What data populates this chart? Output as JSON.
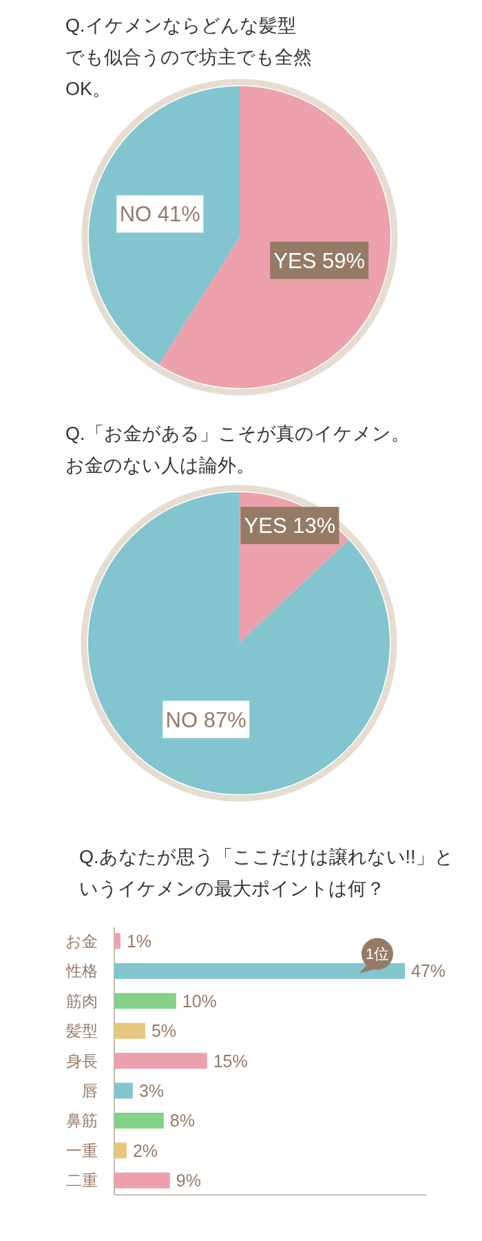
{
  "chart_data": [
    {
      "type": "pie",
      "title": "Q.イケメンならどんな髪型でも似合うので坊主でも全然OK。",
      "categories": [
        "YES",
        "NO"
      ],
      "values": [
        59,
        41
      ],
      "colors": [
        "#eca1ad",
        "#82c5cf"
      ],
      "value_labels": [
        "59%",
        "41%"
      ]
    },
    {
      "type": "pie",
      "title": "Q.「お金がある」こそが真のイケメン。お金のない人は論外。",
      "categories": [
        "YES",
        "NO"
      ],
      "values": [
        13,
        87
      ],
      "colors": [
        "#eca1ad",
        "#82c5cf"
      ],
      "value_labels": [
        "13%",
        "87%"
      ]
    },
    {
      "type": "bar",
      "orientation": "horizontal",
      "title": "Q.あなたが思う「ここだけは譲れない!!」というイケメンの最大ポイントは何？",
      "categories": [
        "お金",
        "性格",
        "筋肉",
        "髪型",
        "身長",
        "唇",
        "鼻筋",
        "一重",
        "二重"
      ],
      "values": [
        1,
        47,
        10,
        5,
        15,
        3,
        8,
        2,
        9
      ],
      "colors": [
        "#eca1ad",
        "#82c5cf",
        "#84d18a",
        "#e6c77e",
        "#eca1ad",
        "#82c5cf",
        "#84d18a",
        "#e6c77e",
        "#eca1ad"
      ],
      "value_labels": [
        "1%",
        "47%",
        "10%",
        "5%",
        "15%",
        "3%",
        "8%",
        "2%",
        "9%"
      ],
      "annotations": [
        {
          "text": "1位",
          "x": 47,
          "y": "性格"
        }
      ]
    }
  ]
}
